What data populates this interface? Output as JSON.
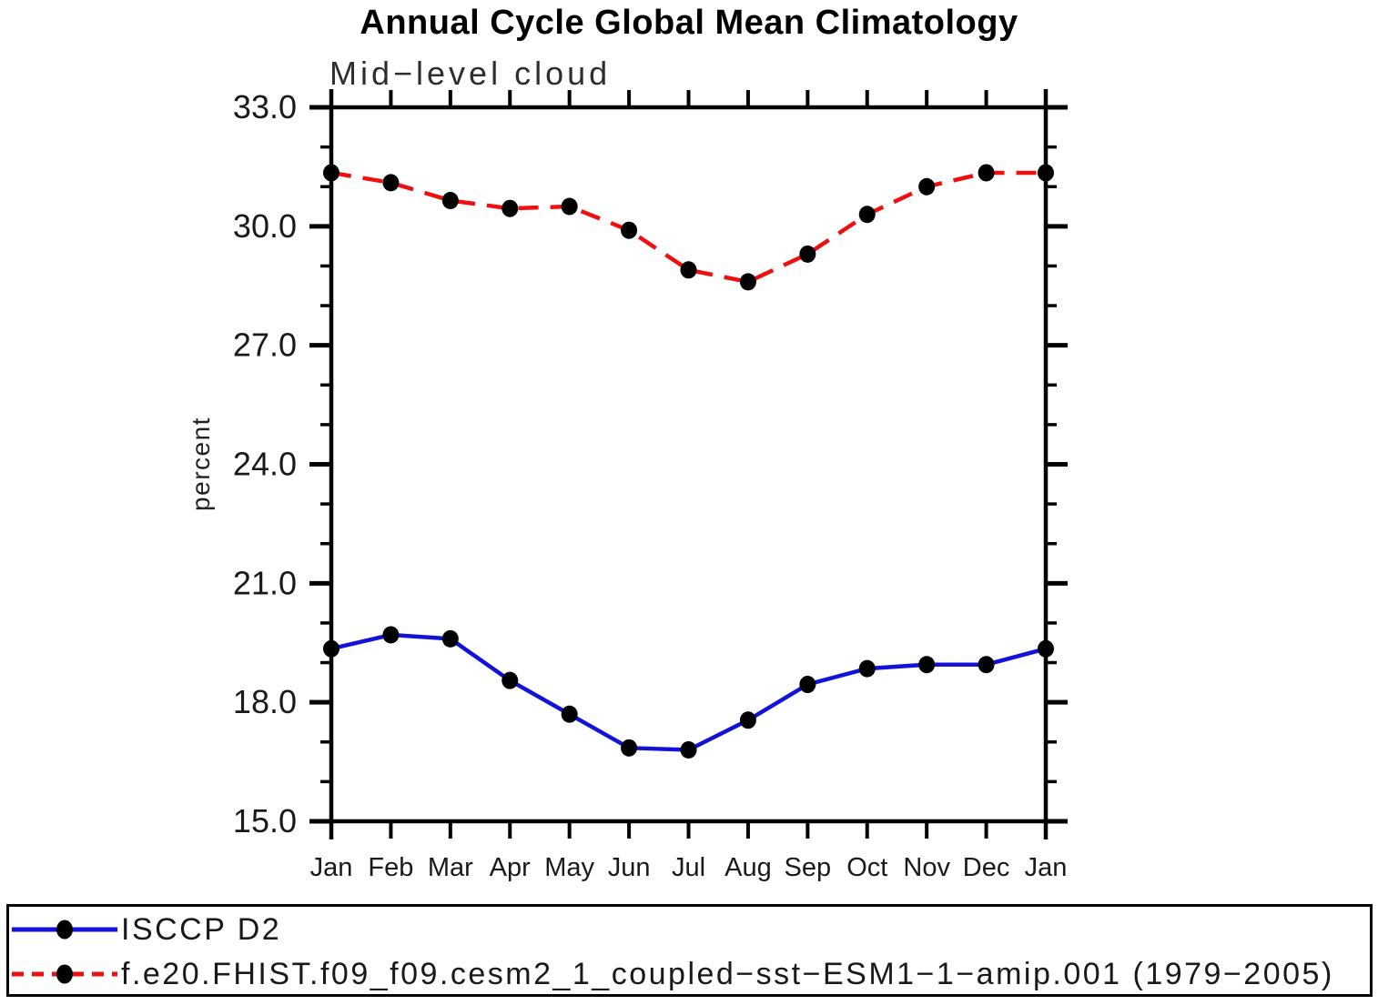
{
  "chart_data": {
    "type": "line",
    "title": "Annual Cycle Global Mean Climatology",
    "subtitle": "Mid−level cloud",
    "ylabel": "percent",
    "xlabel": "",
    "categories": [
      "Jan",
      "Feb",
      "Mar",
      "Apr",
      "May",
      "Jun",
      "Jul",
      "Aug",
      "Sep",
      "Oct",
      "Nov",
      "Dec",
      "Jan"
    ],
    "ylim": [
      15.0,
      33.0
    ],
    "y_major_tick_step": 3.0,
    "y_minor_tick_step": 1.0,
    "y_tick_labels": [
      "15.0",
      "18.0",
      "21.0",
      "24.0",
      "27.0",
      "30.0",
      "33.0"
    ],
    "grid": false,
    "legend_position": "bottom-box",
    "axis_color": "#000000",
    "marker": "filled-circle",
    "marker_color": "#000000",
    "series": [
      {
        "name": "ISCCP D2",
        "color": "#1212d9",
        "line_style": "solid",
        "values": [
          19.35,
          19.7,
          19.6,
          18.55,
          17.7,
          16.85,
          16.8,
          17.55,
          18.45,
          18.85,
          18.95,
          18.95,
          19.35
        ]
      },
      {
        "name": "f.e20.FHIST.f09_f09.cesm2_1_coupled−sst−ESM1−1−amip.001 (1979−2005)",
        "color": "#ee0f0f",
        "line_style": "dashed",
        "values": [
          31.35,
          31.1,
          30.65,
          30.45,
          30.5,
          29.9,
          28.9,
          28.6,
          29.3,
          30.3,
          31.0,
          31.35,
          31.35
        ]
      }
    ]
  }
}
